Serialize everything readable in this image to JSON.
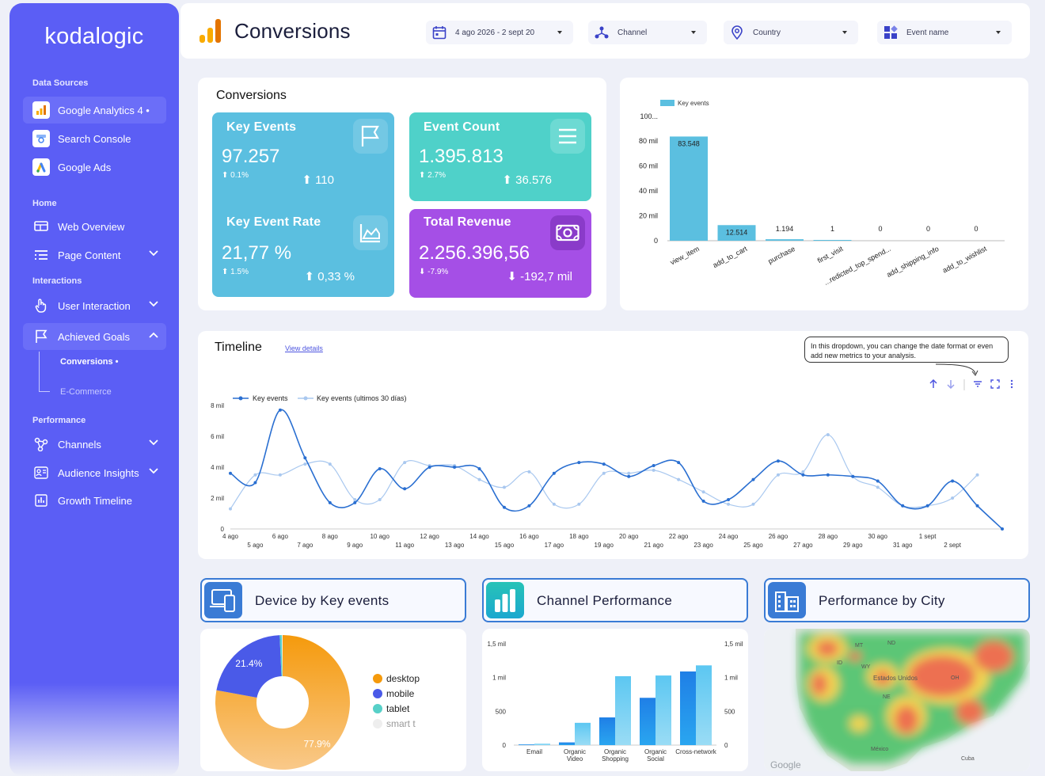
{
  "app": {
    "logo": "kodalogic",
    "page_title": "Conversions"
  },
  "sidebar": {
    "data_sources_title": "Data Sources",
    "sources": [
      {
        "label": "Google Analytics 4 •",
        "icon": "analytics-icon"
      },
      {
        "label": "Search Console",
        "icon": "search-console-icon"
      },
      {
        "label": "Google Ads",
        "icon": "google-ads-icon"
      }
    ],
    "home_title": "Home",
    "home_items": [
      {
        "label": "Web Overview",
        "icon": "monitor-icon"
      },
      {
        "label": "Page Content",
        "icon": "list-icon"
      }
    ],
    "interactions_title": "Interactions",
    "interaction_items": [
      {
        "label": "User Interaction",
        "icon": "hand-pointer-icon"
      },
      {
        "label": "Achieved Goals",
        "icon": "flag-icon"
      }
    ],
    "sub_items": [
      {
        "label": "Conversions •"
      },
      {
        "label": "E-Commerce"
      }
    ],
    "performance_title": "Performance",
    "performance_items": [
      {
        "label": "Channels",
        "icon": "share-icon"
      },
      {
        "label": "Audience Insights",
        "icon": "audience-icon"
      },
      {
        "label": "Growth Timeline",
        "icon": "bar-chart-icon"
      }
    ]
  },
  "filters": {
    "date": "4 ago 2026 - 2 sept 20",
    "channel": "Channel",
    "country": "Country",
    "event": "Event name"
  },
  "conversions_panel": {
    "title": "Conversions",
    "kpis": [
      {
        "title": "Key Events",
        "value": "97.257",
        "pct": "0.1%",
        "abs": "110",
        "color": "#5bbfe0"
      },
      {
        "title": "Event Count",
        "value": "1.395.813",
        "pct": "2.7%",
        "abs": "36.576",
        "color": "#4fd1c9"
      },
      {
        "title": "Key Event Rate",
        "value": "21,77 %",
        "pct": "1.5%",
        "abs": "0,33 %",
        "color": "#5bbfe0"
      },
      {
        "title": "Total Revenue",
        "value": "2.256.396,56",
        "pct": "-7.9%",
        "abs": "-192,7 mil",
        "color": "#a54fe6"
      }
    ]
  },
  "bar_panel": {
    "chart_data": {
      "type": "bar",
      "legend": "Key events",
      "categories": [
        "view_item",
        "add_to_cart",
        "purchase",
        "first_visit",
        "...redicted_top_spend...",
        "add_shipping_info",
        "add_to_wishlist"
      ],
      "values": [
        83548,
        12514,
        1194,
        1,
        0,
        0,
        0
      ],
      "value_labels": [
        "83.548",
        "12.514",
        "1.194",
        "1",
        "0",
        "0",
        "0"
      ],
      "ytick_labels": [
        "0",
        "20 mil",
        "40 mil",
        "60 mil",
        "80 mil",
        "100..."
      ],
      "ylim": [
        0,
        100000
      ],
      "color": "#5bbfe0"
    }
  },
  "timeline": {
    "title": "Timeline",
    "link": "View details",
    "tooltip": "In this dropdown, you can change the date format or even add new metrics to your analysis.",
    "chart_data": {
      "type": "line",
      "series": [
        {
          "name": "Key events",
          "color": "#2a6fd1",
          "values": [
            3600,
            3000,
            7700,
            4600,
            1700,
            1700,
            3900,
            2600,
            4000,
            4000,
            3900,
            1400,
            1500,
            3600,
            4300,
            4200,
            3400,
            4100,
            4300,
            1800,
            1900,
            3200,
            4400,
            3500,
            3500,
            3400,
            3100,
            1500,
            1500,
            3100,
            1500,
            0
          ]
        },
        {
          "name": "Key events (ultimos 30 días)",
          "color": "#a9c8ef",
          "values": [
            1300,
            3500,
            3500,
            4200,
            4200,
            1900,
            1900,
            4300,
            4100,
            4100,
            3200,
            2700,
            3700,
            1600,
            1600,
            3600,
            3600,
            3800,
            3200,
            2400,
            1600,
            1600,
            3500,
            3700,
            6100,
            3400,
            2700,
            1500,
            1500,
            2000,
            3500
          ]
        }
      ],
      "ytick_labels": [
        "0",
        "2 mil",
        "4 mil",
        "6 mil",
        "8 mil"
      ],
      "ylim": [
        0,
        8000
      ],
      "x_top": [
        "4 ago",
        "6 ago",
        "8 ago",
        "10 ago",
        "12 ago",
        "14 ago",
        "16 ago",
        "18 ago",
        "20 ago",
        "22 ago",
        "24 ago",
        "26 ago",
        "28 ago",
        "30 ago",
        "1 sept"
      ],
      "x_bottom": [
        "5 ago",
        "7 ago",
        "9 ago",
        "11 ago",
        "13 ago",
        "15 ago",
        "17 ago",
        "19 ago",
        "21 ago",
        "23 ago",
        "25 ago",
        "27 ago",
        "29 ago",
        "31 ago",
        "2 sept"
      ]
    }
  },
  "cards": {
    "device": {
      "title": "Device by Key events",
      "chart_data": {
        "type": "pie",
        "slices": [
          {
            "label": "desktop",
            "value": 77.9,
            "value_label": "77.9%",
            "color": "#f59a0c"
          },
          {
            "label": "mobile",
            "value": 21.4,
            "value_label": "21.4%",
            "color": "#4a5ae8"
          },
          {
            "label": "tablet",
            "value": 0.5,
            "value_label": "",
            "color": "#57d0c8"
          },
          {
            "label": "smart t",
            "value": 0.2,
            "value_label": "",
            "color": "#eeeeee"
          }
        ]
      }
    },
    "channel": {
      "title": "Channel Performance",
      "chart_data": {
        "type": "bar",
        "categories": [
          "Email",
          "Organic Video",
          "Organic Shopping",
          "Organic Social",
          "Cross-network"
        ],
        "series": [
          {
            "values": [
              10,
              40,
              410,
              700,
              1090
            ],
            "color": "#1f86e8"
          },
          {
            "values": [
              20,
              330,
              1020,
              1030,
              1180
            ],
            "color": "#66c9ef"
          }
        ],
        "left_ticks": [
          "0",
          "500",
          "1 mil",
          "1,5 mil"
        ],
        "right_ticks": [
          "0",
          "500",
          "1 mil",
          "1,5 mil"
        ],
        "ylim": [
          0,
          1500
        ]
      }
    },
    "city": {
      "title": "Performance by City",
      "map_labels": [
        "MT",
        "ND",
        "ID",
        "WY",
        "Estados Unidos",
        "OH",
        "NE",
        "México",
        "Cuba"
      ],
      "map_credit": "Google"
    }
  }
}
